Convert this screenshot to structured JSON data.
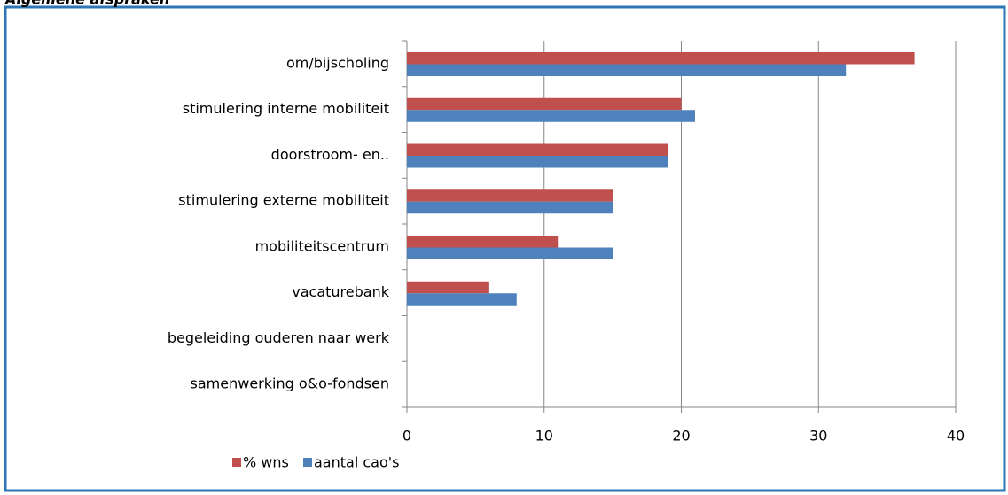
{
  "chart_data": {
    "type": "hbar",
    "title": "Algemene afspraken",
    "categories": [
      "om/bijscholing",
      "stimulering interne mobiliteit",
      "doorstroom- en..",
      "stimulering externe mobiliteit",
      "mobiliteitscentrum",
      "vacaturebank",
      "begeleiding ouderen naar werk",
      "samenwerking o&o-fondsen"
    ],
    "series": [
      {
        "name": "% wns",
        "color": "#c0504d",
        "values": [
          37,
          20,
          19,
          15,
          11,
          6,
          0,
          0
        ]
      },
      {
        "name": "aantal cao's",
        "color": "#4f81bd",
        "values": [
          32,
          21,
          19,
          15,
          15,
          8,
          0,
          0
        ]
      }
    ],
    "xlim": [
      0,
      40
    ],
    "xticks": [
      0,
      10,
      20,
      30,
      40
    ],
    "grid": true
  }
}
